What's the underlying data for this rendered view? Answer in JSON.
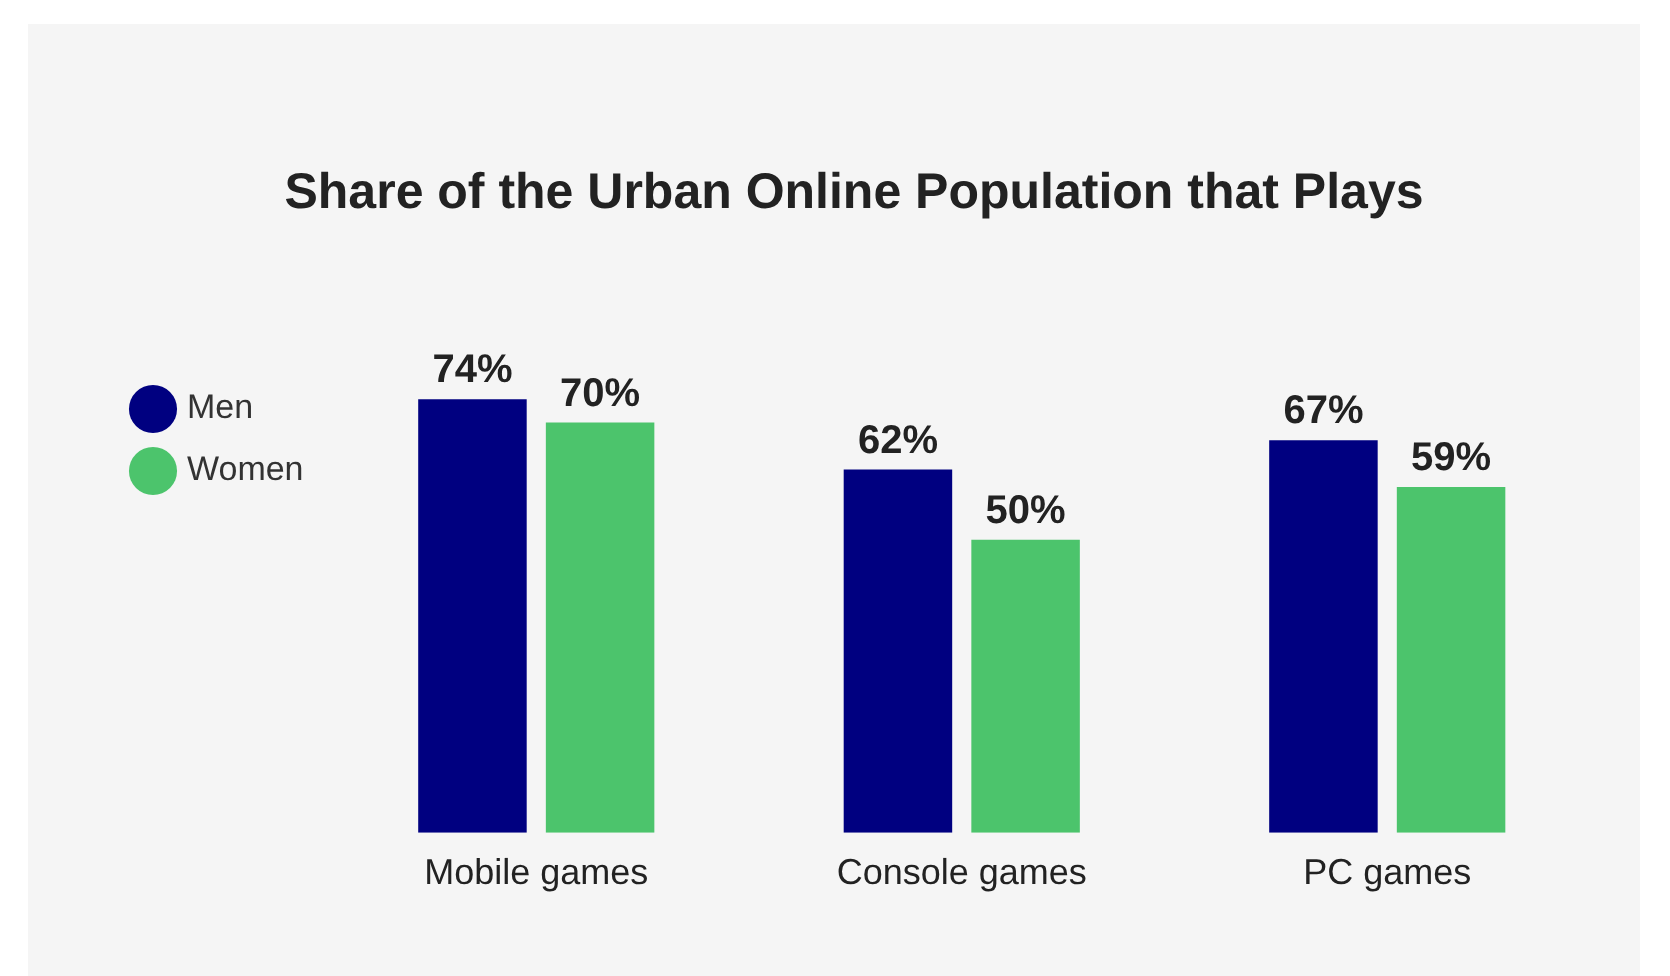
{
  "chart_data": {
    "type": "bar",
    "title": "Share of the Urban Online Population that Plays",
    "categories": [
      "Mobile games",
      "Console games",
      "PC games"
    ],
    "series": [
      {
        "name": "Men",
        "color": "#000080",
        "values": [
          74,
          62,
          67
        ],
        "value_labels": [
          "74%",
          "62%",
          "67%"
        ]
      },
      {
        "name": "Women",
        "color": "#4cc46c",
        "values": [
          70,
          50,
          59
        ],
        "value_labels": [
          "70%",
          "50%",
          "59%"
        ]
      }
    ],
    "grid": false,
    "legend": "top left"
  }
}
